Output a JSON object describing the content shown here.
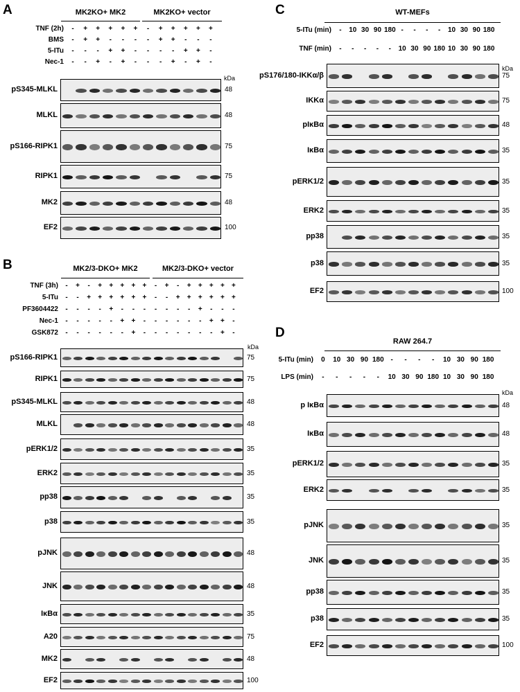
{
  "panels": [
    {
      "id": "A",
      "letter": "A",
      "groups": [
        "MK2KO+ MK2",
        "MK2KO+ vector"
      ],
      "conditions": [
        {
          "label": "TNF (2h)",
          "values": [
            "-",
            "+",
            "+",
            "+",
            "+",
            "+",
            "-",
            "+",
            "+",
            "+",
            "+",
            "+"
          ]
        },
        {
          "label": "BMS",
          "values": [
            "-",
            "+",
            "+",
            "-",
            "-",
            "-",
            "-",
            "+",
            "+",
            "-",
            "-",
            "-"
          ]
        },
        {
          "label": "5-ITu",
          "values": [
            "-",
            "-",
            "-",
            "+",
            "+",
            "-",
            "-",
            "-",
            "-",
            "+",
            "+",
            "-"
          ]
        },
        {
          "label": "Nec-1",
          "values": [
            "-",
            "-",
            "+",
            "-",
            "+",
            "-",
            "-",
            "-",
            "+",
            "-",
            "+",
            "-"
          ]
        }
      ],
      "kda": "kDa",
      "blots": [
        {
          "label": "pS345-MLKL",
          "markers": [
            "48"
          ]
        },
        {
          "label": "MLKL",
          "markers": [
            "48"
          ]
        },
        {
          "label": "pS166-RIPK1",
          "markers": [
            "75"
          ]
        },
        {
          "label": "RIPK1",
          "markers": [
            "75"
          ]
        },
        {
          "label": "MK2",
          "markers": [
            "48"
          ]
        },
        {
          "label": "EF2",
          "markers": [
            "100"
          ]
        }
      ]
    },
    {
      "id": "B",
      "letter": "B",
      "groups": [
        "MK2/3-DKO+ MK2",
        "MK2/3-DKO+ vector"
      ],
      "conditions": [
        {
          "label": "TNF (3h)",
          "values": [
            "-",
            "+",
            "-",
            "+",
            "+",
            "+",
            "+",
            "+",
            "-",
            "+",
            "-",
            "+",
            "+",
            "+",
            "+",
            "+"
          ]
        },
        {
          "label": "5-ITu",
          "values": [
            "-",
            "-",
            "+",
            "+",
            "+",
            "+",
            "+",
            "+",
            "-",
            "-",
            "+",
            "+",
            "+",
            "+",
            "+",
            "+"
          ]
        },
        {
          "label": "PF3604422",
          "values": [
            "-",
            "-",
            "-",
            "-",
            "+",
            "-",
            "-",
            "-",
            "-",
            "-",
            "-",
            "-",
            "+",
            "-",
            "-",
            "-"
          ]
        },
        {
          "label": "Nec-1",
          "values": [
            "-",
            "-",
            "-",
            "-",
            "-",
            "+",
            "+",
            "-",
            "-",
            "-",
            "-",
            "-",
            "-",
            "+",
            "+",
            "-"
          ]
        },
        {
          "label": "GSK872",
          "values": [
            "-",
            "-",
            "-",
            "-",
            "-",
            "-",
            "+",
            "-",
            "-",
            "-",
            "-",
            "-",
            "-",
            "-",
            "+",
            "-"
          ]
        }
      ],
      "kda": "kDa",
      "blots": [
        {
          "label": "pS166-RIPK1",
          "markers": [
            "75"
          ]
        },
        {
          "label": "RIPK1",
          "markers": [
            "75"
          ]
        },
        {
          "label": "pS345-MLKL",
          "markers": [
            "48"
          ]
        },
        {
          "label": "MLKL",
          "markers": [
            "48"
          ]
        },
        {
          "label": "pERK1/2",
          "markers": [
            "35"
          ]
        },
        {
          "label": "ERK2",
          "markers": [
            "35"
          ]
        },
        {
          "label": "pp38",
          "markers": [
            "35"
          ]
        },
        {
          "label": "p38",
          "markers": [
            "35"
          ]
        },
        {
          "label": "pJNK",
          "markers": [
            "48"
          ]
        },
        {
          "label": "JNK",
          "markers": [
            "48"
          ]
        },
        {
          "label": "IκBα",
          "markers": [
            "35"
          ]
        },
        {
          "label": "A20",
          "markers": [
            "75"
          ]
        },
        {
          "label": "MK2",
          "markers": [
            "48"
          ]
        },
        {
          "label": "EF2",
          "markers": [
            "100"
          ]
        }
      ]
    },
    {
      "id": "C",
      "letter": "C",
      "groups": [
        "WT-MEFs"
      ],
      "conditions": [
        {
          "label": "5-ITu (min)",
          "values": [
            "-",
            "10",
            "30",
            "90",
            "180",
            "-",
            "-",
            "-",
            "-",
            "10",
            "30",
            "90",
            "180"
          ]
        },
        {
          "label": "TNF (min)",
          "values": [
            "-",
            "-",
            "-",
            "-",
            "-",
            "10",
            "30",
            "90",
            "180",
            "10",
            "30",
            "90",
            "180"
          ]
        }
      ],
      "kda": "kDa",
      "blots": [
        {
          "label": "pS176/180-IKKα/β",
          "markers": [
            "75"
          ]
        },
        {
          "label": "IKKα",
          "markers": [
            "75"
          ]
        },
        {
          "label": "pIκBα",
          "markers": [
            "48"
          ]
        },
        {
          "label": "IκBα",
          "markers": [
            "35"
          ]
        },
        {
          "label": "pERK1/2",
          "markers": [
            "35"
          ]
        },
        {
          "label": "ERK2",
          "markers": [
            "35"
          ]
        },
        {
          "label": "pp38",
          "markers": [
            "35"
          ]
        },
        {
          "label": "p38",
          "markers": [
            "35"
          ]
        },
        {
          "label": "EF2",
          "markers": [
            "100"
          ]
        }
      ]
    },
    {
      "id": "D",
      "letter": "D",
      "groups": [
        "RAW 264.7"
      ],
      "conditions": [
        {
          "label": "5-ITu (min)",
          "values": [
            "0",
            "10",
            "30",
            "90",
            "180",
            "-",
            "-",
            "-",
            "-",
            "10",
            "30",
            "90",
            "180"
          ]
        },
        {
          "label": "LPS (min)",
          "values": [
            "-",
            "-",
            "-",
            "-",
            "-",
            "10",
            "30",
            "90",
            "180",
            "10",
            "30",
            "90",
            "180"
          ]
        }
      ],
      "kda": "kDa",
      "blots": [
        {
          "label": "p IκBα",
          "markers": [
            "48"
          ]
        },
        {
          "label": "IκBα",
          "markers": [
            "48"
          ]
        },
        {
          "label": "pERK1/2",
          "markers": [
            "35"
          ]
        },
        {
          "label": "ERK2",
          "markers": [
            "35"
          ]
        },
        {
          "label": "pJNK",
          "markers": [
            "35"
          ]
        },
        {
          "label": "JNK",
          "markers": [
            "35"
          ]
        },
        {
          "label": "pp38",
          "markers": [
            "35"
          ]
        },
        {
          "label": "p38",
          "markers": [
            "35"
          ]
        },
        {
          "label": "EF2",
          "markers": [
            "100"
          ]
        }
      ]
    }
  ]
}
